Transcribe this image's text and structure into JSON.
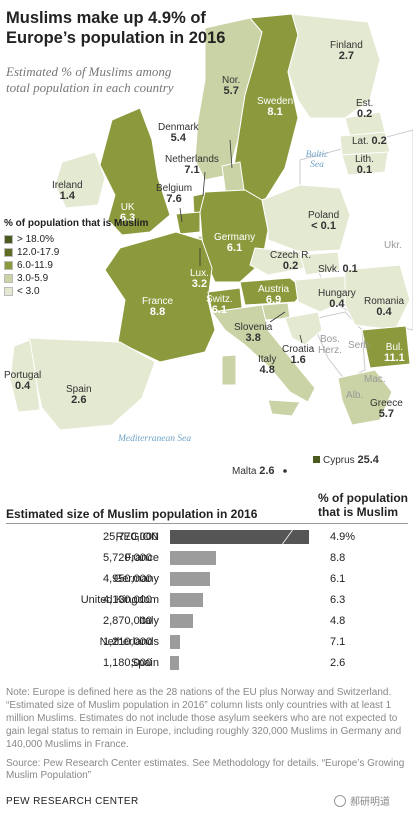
{
  "title": "Muslims make up 4.9% of Europe’s population in 2016",
  "subtitle": "Estimated % of Muslims among total population in each country",
  "colors": {
    "gt18": "#4b5a1e",
    "c12_17": "#5e6d23",
    "c6_11": "#8c9a3d",
    "c3_5": "#c9d3a5",
    "lt3": "#e4e9d2",
    "nondata": "#ffffff",
    "sea": "#6fa3c9",
    "bar": "#9c9c9c",
    "region_bar": "#555555"
  },
  "legend": {
    "title": "% of population that is Muslim",
    "items": [
      {
        "label": "> 18.0%",
        "color": "#4b5a1e"
      },
      {
        "label": "12.0-17.9",
        "color": "#5e6d23"
      },
      {
        "label": "6.0-11.9",
        "color": "#8c9a3d"
      },
      {
        "label": "3.0-5.9",
        "color": "#c9d3a5"
      },
      {
        "label": "< 3.0",
        "color": "#e4e9d2"
      }
    ]
  },
  "seas": {
    "baltic": "Baltic Sea",
    "mediterranean": "Mediterranean Sea"
  },
  "map_labels": {
    "finland": {
      "name": "Finland",
      "value": "2.7"
    },
    "norway": {
      "name": "Nor.",
      "value": "5.7"
    },
    "sweden": {
      "name": "Sweden",
      "value": "8.1"
    },
    "estonia": {
      "name": "Est.",
      "value": "0.2"
    },
    "latvia": {
      "name": "Lat.",
      "value": "0.2"
    },
    "lithuania": {
      "name": "Lith.",
      "value": "0.1"
    },
    "denmark": {
      "name": "Denmark",
      "value": "5.4"
    },
    "netherlands": {
      "name": "Netherlands",
      "value": "7.1"
    },
    "ireland": {
      "name": "Ireland",
      "value": "1.4"
    },
    "uk": {
      "name": "UK",
      "value": "6.3"
    },
    "belgium": {
      "name": "Belgium",
      "value": "7.6"
    },
    "germany": {
      "name": "Germany",
      "value": "6.1"
    },
    "poland": {
      "name": "Poland",
      "value": "< 0.1"
    },
    "ukraine": {
      "name": "Ukr."
    },
    "czech": {
      "name": "Czech R.",
      "value": "0.2"
    },
    "slovakia": {
      "name": "Slvk.",
      "value": "0.1"
    },
    "luxembourg": {
      "name": "Lux.",
      "value": "3.2"
    },
    "france": {
      "name": "France",
      "value": "8.8"
    },
    "switzerland": {
      "name": "Switz.",
      "value": "6.1"
    },
    "austria": {
      "name": "Austria",
      "value": "6.9"
    },
    "hungary": {
      "name": "Hungary",
      "value": "0.4"
    },
    "romania": {
      "name": "Romania",
      "value": "0.4"
    },
    "slovenia": {
      "name": "Slovenia",
      "value": "3.8"
    },
    "italy": {
      "name": "Italy",
      "value": "4.8"
    },
    "croatia": {
      "name": "Croatia",
      "value": "1.6"
    },
    "bosnia": {
      "name": "Bos.\nHerz."
    },
    "serbia": {
      "name": "Serb."
    },
    "bulgaria": {
      "name": "Bul.",
      "value": "11.1"
    },
    "macedonia": {
      "name": "Mac."
    },
    "albania": {
      "name": "Alb."
    },
    "portugal": {
      "name": "Portugal",
      "value": "0.4"
    },
    "spain": {
      "name": "Spain",
      "value": "2.6"
    },
    "greece": {
      "name": "Greece",
      "value": "5.7"
    },
    "malta": {
      "name": "Malta",
      "value": "2.6"
    },
    "cyprus": {
      "name": "Cyprus",
      "value": "25.4"
    }
  },
  "table": {
    "heading_left": "Estimated size of Muslim population in 2016",
    "heading_right": "% of population that is Muslim",
    "rows": [
      {
        "country": "REGION",
        "number": "25,770,000",
        "value": 25770000,
        "pct": "4.9%",
        "broken": true
      },
      {
        "country": "France",
        "number": "5,720,000",
        "value": 5720000,
        "pct": "8.8"
      },
      {
        "country": "Germany",
        "number": "4,950,000",
        "value": 4950000,
        "pct": "6.1"
      },
      {
        "country": "United Kingdom",
        "number": "4,130,000",
        "value": 4130000,
        "pct": "6.3"
      },
      {
        "country": "Italy",
        "number": "2,870,000",
        "value": 2870000,
        "pct": "4.8"
      },
      {
        "country": "Netherlands",
        "number": "1,210,000",
        "value": 1210000,
        "pct": "7.1"
      },
      {
        "country": "Spain",
        "number": "1,180,000",
        "value": 1180000,
        "pct": "2.6"
      }
    ]
  },
  "notes": "Note: Europe is defined here as the 28 nations of the EU plus Norway and Switzerland. “Estimated size of Muslim population in 2016” column lists only countries with at least 1 million Muslims. Estimates do not include those asylum seekers who are not expected to gain legal status to remain in Europe, including roughly 320,000 Muslims in Germany and 140,000 Muslims in France.",
  "source": "Source: Pew Research Center estimates. See Methodology for details. “Europe’s Growing Muslim Population”",
  "brand": "PEW RESEARCH CENTER",
  "watermark": "郝研明道"
}
